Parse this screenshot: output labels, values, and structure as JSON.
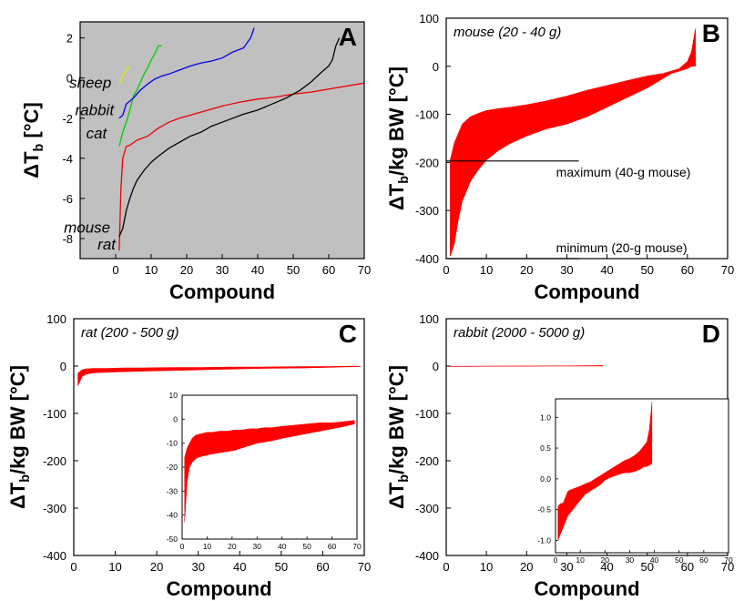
{
  "chart_data": [
    {
      "panel": "A",
      "type": "line",
      "xlabel": "Compound",
      "ylabel_main": "ΔT",
      "ylabel_sub": "b",
      "ylabel_unit": " [°C]",
      "xlim": [
        -10,
        70
      ],
      "ylim": [
        -9,
        2.8
      ],
      "xticks": [
        0,
        10,
        20,
        30,
        40,
        50,
        60,
        70
      ],
      "yticks": [
        -8,
        -6,
        -4,
        -2,
        0,
        2
      ],
      "background": "#c0c0c0",
      "series": [
        {
          "name": "sheep",
          "color": "#e8e800",
          "label_x": -1.2,
          "label_y": -0.5,
          "x": [
            1,
            2,
            3,
            4
          ],
          "y": [
            -0.3,
            0.1,
            0.4,
            0.6
          ]
        },
        {
          "name": "rabbit",
          "color": "#00cc00",
          "label_x": -0.5,
          "label_y": -1.85,
          "x": [
            1,
            2,
            3,
            4,
            5,
            6,
            7,
            8,
            9,
            10,
            11,
            12,
            13
          ],
          "y": [
            -3.4,
            -2.7,
            -2.2,
            -1.6,
            -0.9,
            -0.6,
            -0.2,
            0.2,
            0.5,
            0.9,
            1.2,
            1.6,
            1.6
          ]
        },
        {
          "name": "cat",
          "color": "#0000ee",
          "label_x": -2.5,
          "label_y": -3.0,
          "x": [
            1,
            2,
            3,
            5,
            7,
            9,
            11,
            13,
            15,
            18,
            21,
            24,
            27,
            30,
            33,
            36,
            38,
            39
          ],
          "y": [
            -2.0,
            -1.85,
            -1.3,
            -1.0,
            -0.6,
            -0.3,
            -0.05,
            0.1,
            0.2,
            0.4,
            0.6,
            0.75,
            0.85,
            1.0,
            1.3,
            1.5,
            2.0,
            2.5
          ]
        },
        {
          "name": "mouse",
          "color": "#ee0000",
          "label_x": -1.5,
          "label_y": -7.7,
          "x": [
            1,
            1.5,
            2,
            3,
            4,
            6,
            9,
            12,
            15,
            18,
            22,
            26,
            30,
            35,
            40,
            45,
            50,
            55,
            60,
            65,
            70
          ],
          "y": [
            -8.6,
            -5.5,
            -4.0,
            -3.4,
            -3.35,
            -3.1,
            -2.9,
            -2.5,
            -2.2,
            -2.0,
            -1.8,
            -1.6,
            -1.4,
            -1.2,
            -1.05,
            -0.95,
            -0.8,
            -0.7,
            -0.55,
            -0.4,
            -0.25
          ]
        },
        {
          "name": "rat",
          "color": "#000000",
          "label_x": 0,
          "label_y": -8.55,
          "x": [
            1,
            2,
            3,
            4,
            5,
            6,
            8,
            10,
            12,
            15,
            18,
            21,
            24,
            27,
            30,
            33,
            36,
            40,
            44,
            48,
            52,
            55,
            58,
            60,
            61,
            62,
            63
          ],
          "y": [
            -7.9,
            -7.5,
            -6.6,
            -6.0,
            -5.5,
            -5.1,
            -4.6,
            -4.2,
            -3.9,
            -3.5,
            -3.2,
            -2.9,
            -2.7,
            -2.4,
            -2.2,
            -2.0,
            -1.8,
            -1.6,
            -1.3,
            -1.0,
            -0.6,
            -0.2,
            0.3,
            0.6,
            0.9,
            1.6,
            2.0
          ]
        }
      ]
    },
    {
      "panel": "B",
      "type": "area",
      "annotation": "mouse (20 - 40 g)",
      "xlabel": "Compound",
      "ylabel_main": "ΔT",
      "ylabel_sub": "b",
      "ylabel_unit": "/kg BW [°C]",
      "xlim": [
        0,
        70
      ],
      "ylim": [
        -400,
        100
      ],
      "xticks": [
        0,
        10,
        20,
        30,
        40,
        50,
        60,
        70
      ],
      "yticks": [
        -400,
        -300,
        -200,
        -100,
        0,
        100
      ],
      "color": "#ff0000",
      "x": [
        1,
        2,
        3,
        4,
        6,
        8,
        10,
        13,
        16,
        20,
        25,
        30,
        35,
        40,
        45,
        50,
        54,
        56,
        58,
        60,
        61,
        62
      ],
      "upper": [
        -195,
        -160,
        -140,
        -120,
        -105,
        -98,
        -92,
        -88,
        -85,
        -80,
        -72,
        -62,
        -50,
        -40,
        -30,
        -20,
        -15,
        -10,
        -5,
        10,
        30,
        78
      ],
      "lower": [
        -395,
        -370,
        -320,
        -280,
        -240,
        -215,
        -195,
        -175,
        -160,
        -145,
        -130,
        -120,
        -105,
        -85,
        -65,
        -45,
        -25,
        -15,
        -10,
        -5,
        0,
        0
      ],
      "hlines": [
        {
          "y": -197,
          "x0": 0,
          "x1": 33,
          "label": "maximum (40-g mouse)"
        },
        {
          "y": -400,
          "x0": 0,
          "x1": 33,
          "label": "minimum (20-g mouse)"
        }
      ]
    },
    {
      "panel": "C",
      "type": "area",
      "annotation": "rat (200 - 500 g)",
      "xlabel": "Compound",
      "ylabel_main": "ΔT",
      "ylabel_sub": "b",
      "ylabel_unit": "/kg BW [°C]",
      "xlim": [
        0,
        70
      ],
      "ylim": [
        -400,
        100
      ],
      "xticks": [
        0,
        10,
        20,
        30,
        40,
        50,
        60,
        70
      ],
      "yticks": [
        -400,
        -300,
        -200,
        -100,
        0,
        100
      ],
      "color": "#ff0000",
      "x": [
        1,
        2,
        3,
        5,
        8,
        12,
        16,
        20,
        25,
        30,
        35,
        40,
        45,
        50,
        55,
        60,
        65,
        69
      ],
      "upper": [
        -15,
        -8,
        -6,
        -5,
        -5,
        -4,
        -4,
        -3.5,
        -3,
        -3,
        -2.5,
        -2,
        -2,
        -1.5,
        -1,
        -1,
        -0.5,
        0
      ],
      "lower": [
        -42,
        -22,
        -17,
        -14,
        -13,
        -12,
        -11,
        -10,
        -9,
        -8,
        -7,
        -6,
        -5,
        -4.5,
        -4,
        -3,
        -2,
        -1
      ],
      "inset": {
        "xlim": [
          0,
          70
        ],
        "ylim": [
          -50,
          10
        ],
        "xticks": [
          0,
          10,
          20,
          30,
          40,
          50,
          60,
          70
        ],
        "yticks": [
          -50,
          -40,
          -30,
          -20,
          -10,
          0,
          10
        ],
        "x": [
          1,
          2,
          3,
          4,
          5,
          6,
          8,
          10,
          12,
          15,
          18,
          21,
          24,
          27,
          30,
          33,
          36,
          40,
          45,
          50,
          55,
          60,
          65,
          69
        ],
        "upper": [
          -16,
          -12,
          -10,
          -8,
          -7,
          -6.5,
          -6,
          -5.5,
          -5.5,
          -5,
          -5,
          -4.5,
          -4.5,
          -4,
          -4,
          -3.5,
          -3.5,
          -3,
          -2.5,
          -2,
          -1.5,
          -1.5,
          -1,
          -0.5
        ],
        "lower": [
          -43,
          -26,
          -20,
          -18,
          -17,
          -16,
          -15.5,
          -15,
          -14.5,
          -14,
          -13.5,
          -13,
          -12,
          -11,
          -10,
          -9.5,
          -9,
          -8,
          -7,
          -6,
          -5,
          -4,
          -3,
          -2
        ]
      }
    },
    {
      "panel": "D",
      "type": "area",
      "annotation": "rabbit (2000 - 5000 g)",
      "xlabel": "Compound",
      "ylabel_main": "ΔT",
      "ylabel_sub": "b",
      "ylabel_unit": "/kg BW [°C]",
      "xlim": [
        0,
        70
      ],
      "ylim": [
        -400,
        100
      ],
      "xticks": [
        0,
        10,
        20,
        30,
        40,
        50,
        60,
        70
      ],
      "yticks": [
        -400,
        -300,
        -200,
        -100,
        0,
        100
      ],
      "color": "#ff0000",
      "x": [
        1,
        10,
        20,
        30,
        39
      ],
      "upper": [
        -0.3,
        -0.1,
        0.1,
        0.4,
        1.2
      ],
      "lower": [
        -1.0,
        -0.4,
        -0.1,
        0.1,
        0.2
      ],
      "inset": {
        "xlim": [
          0,
          70
        ],
        "ylim": [
          -1.2,
          1.3
        ],
        "xticks": [
          0,
          10,
          20,
          30,
          40,
          50,
          60,
          70
        ],
        "yticks": [
          -1.0,
          -0.5,
          0.0,
          0.5,
          1.0
        ],
        "ytick_labels": [
          "-1.0",
          "-0.5",
          "0.0",
          "0.5",
          "1.0"
        ],
        "x": [
          1,
          2,
          3,
          4,
          5,
          6,
          8,
          10,
          12,
          14,
          16,
          18,
          20,
          22,
          24,
          26,
          28,
          30,
          32,
          34,
          36,
          37,
          38,
          39
        ],
        "upper": [
          -0.45,
          -0.4,
          -0.4,
          -0.3,
          -0.2,
          -0.18,
          -0.15,
          -0.12,
          -0.08,
          -0.05,
          0.0,
          0.05,
          0.1,
          0.15,
          0.2,
          0.25,
          0.3,
          0.33,
          0.38,
          0.45,
          0.55,
          0.6,
          0.8,
          1.25
        ],
        "lower": [
          -1.0,
          -0.9,
          -0.8,
          -0.7,
          -0.6,
          -0.55,
          -0.45,
          -0.35,
          -0.25,
          -0.2,
          -0.15,
          -0.1,
          -0.02,
          0.02,
          0.05,
          0.08,
          0.1,
          0.1,
          0.12,
          0.15,
          0.2,
          0.2,
          0.22,
          0.25
        ]
      }
    }
  ]
}
